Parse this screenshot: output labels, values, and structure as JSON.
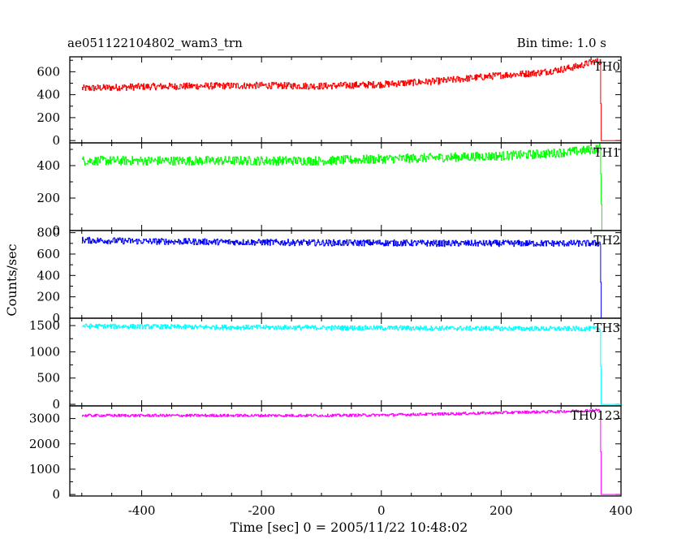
{
  "header": {
    "title": "ae051122104802_wam3_trn",
    "bin_time": "Bin time: 1.0 s"
  },
  "chart_data": {
    "type": "line",
    "title": "ae051122104802_wam3_trn",
    "subtitle": "Bin time: 1.0 s",
    "xlabel": "Time [sec] 0 = 2005/11/22 10:48:02",
    "ylabel": "Counts/sec",
    "xlim": [
      -520,
      400
    ],
    "x_ticks": [
      -400,
      -200,
      0,
      200,
      400
    ],
    "grid": false,
    "panels": [
      {
        "name": "TH0",
        "color": "#ff0000",
        "ylim": [
          -20,
          730
        ],
        "y_ticks": [
          0,
          200,
          400,
          600
        ],
        "x": [
          -500,
          -400,
          -300,
          -200,
          -100,
          0,
          100,
          200,
          260,
          300,
          330,
          355,
          365,
          367,
          370,
          400
        ],
        "values": [
          455,
          470,
          475,
          480,
          475,
          490,
          520,
          570,
          590,
          620,
          650,
          690,
          690,
          0,
          0,
          0
        ],
        "noise": 30
      },
      {
        "name": "TH1",
        "color": "#00ff00",
        "ylim": [
          0,
          540
        ],
        "y_ticks": [
          0,
          200,
          400
        ],
        "x": [
          -500,
          -400,
          -300,
          -200,
          -100,
          0,
          100,
          200,
          260,
          300,
          330,
          355,
          365,
          368,
          370,
          400
        ],
        "values": [
          430,
          430,
          430,
          430,
          430,
          440,
          450,
          460,
          470,
          480,
          490,
          500,
          510,
          0,
          0,
          0
        ],
        "noise": 28
      },
      {
        "name": "TH2",
        "color": "#0000ff",
        "ylim": [
          0,
          820
        ],
        "y_ticks": [
          0,
          200,
          400,
          600,
          800
        ],
        "x": [
          -500,
          -400,
          -300,
          -200,
          -100,
          0,
          100,
          200,
          300,
          365,
          367,
          370,
          400
        ],
        "values": [
          730,
          720,
          715,
          710,
          705,
          705,
          700,
          700,
          700,
          700,
          0,
          0,
          0
        ],
        "noise": 30
      },
      {
        "name": "TH3",
        "color": "#00ffff",
        "ylim": [
          -30,
          1640
        ],
        "y_ticks": [
          0,
          500,
          1000,
          1500
        ],
        "x": [
          -500,
          -400,
          -300,
          -200,
          -100,
          0,
          100,
          200,
          300,
          365,
          367,
          370,
          400
        ],
        "values": [
          1490,
          1480,
          1470,
          1465,
          1460,
          1455,
          1450,
          1445,
          1440,
          1440,
          0,
          0,
          0
        ],
        "noise": 45
      },
      {
        "name": "TH0123",
        "color": "#ff00ff",
        "ylim": [
          -60,
          3500
        ],
        "y_ticks": [
          0,
          1000,
          2000,
          3000
        ],
        "x": [
          -500,
          -400,
          -300,
          -200,
          -100,
          0,
          100,
          200,
          300,
          350,
          365,
          367,
          370,
          400
        ],
        "values": [
          3120,
          3120,
          3120,
          3120,
          3120,
          3140,
          3180,
          3230,
          3280,
          3320,
          3330,
          0,
          0,
          0
        ],
        "noise": 55
      }
    ]
  }
}
